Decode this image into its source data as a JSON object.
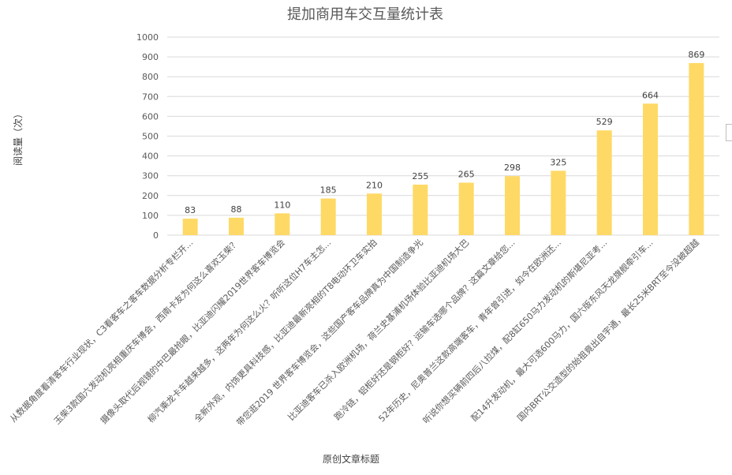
{
  "chart_data": {
    "type": "bar",
    "title": "提加商用车交互量统计表",
    "xlabel": "原创文章标题",
    "ylabel": "阅读量（次）",
    "ylim": [
      0,
      1000
    ],
    "yticks": [
      0,
      100,
      200,
      300,
      400,
      500,
      600,
      700,
      800,
      900,
      1000
    ],
    "grid": true,
    "bar_color": "#FFD966",
    "categories": [
      "从数据角度看清客车行业现状，C3看客车之客车数据分析专栏开...",
      "玉柴3款国六发动机亮相重庆车博会，西南卡友为何这么喜欢玉柴？",
      "摄像头取代后视镜的中巴最抢眼，比亚迪闪耀2019世界客车博览会",
      "柳汽乘龙卡车越来越多，这两年为何这么火？听听这位H7车主怎...",
      "全新外观，内饰更具科技感，比亚迪最新亮相的T8电动环卫车实拍",
      "带您逛2019 世界客车博览会，这些国产客车品牌真为中国制造争光",
      "比亚迪客车已杀入欧洲机场，荷兰史基浦机场体验比亚迪机场大巴",
      "跑冷链，铝柜好还是钢柜好？运输车选哪个品牌？这篇文章给您...",
      "52年历史，尼奥普兰这款高端客车，青年曾引进，如今在欧洲还...",
      "听说你想买辆前四后八拉煤，配8缸650马力发动机的斯堪尼亚考...",
      "配14升发动机，最大可选600马力，国六版东风天龙旗舰牵引车...",
      "国内BRT公交造型的始祖竟出自宇通，最长25米BRT至今没被超越"
    ],
    "values": [
      83,
      88,
      110,
      185,
      210,
      255,
      265,
      298,
      325,
      529,
      664,
      869
    ]
  }
}
